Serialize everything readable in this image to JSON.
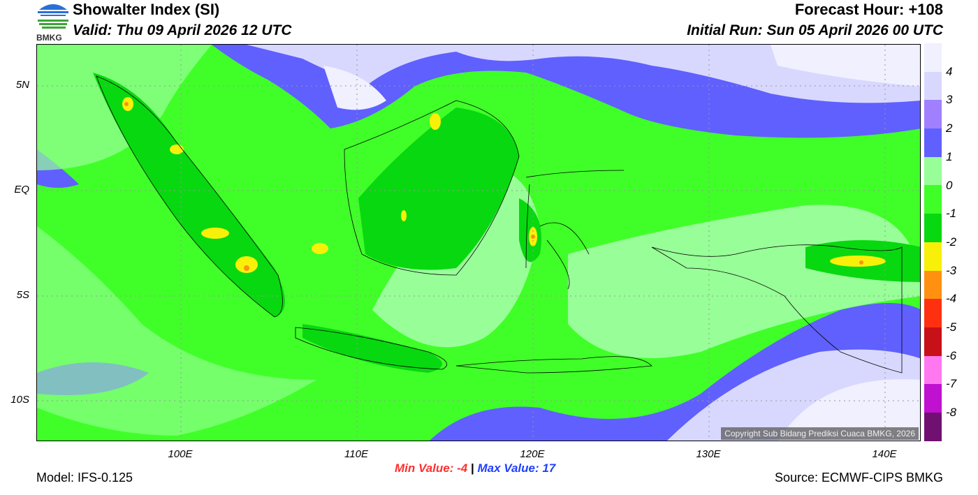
{
  "header": {
    "title": "Showalter Index (SI)",
    "valid": "Valid: Thu 09 April 2026 12 UTC",
    "forecast_hour": "Forecast Hour: +108",
    "initial_run": "Initial Run: Sun 05 April 2026 00 UTC",
    "logo_text": "BMKG"
  },
  "map": {
    "lat_labels": [
      "5N",
      "EQ",
      "5S",
      "10S"
    ],
    "lon_labels": [
      "100E",
      "110E",
      "120E",
      "130E",
      "140E"
    ],
    "copyright": "Copyright Sub Bidang Prediksi Cuaca BMKG, 2026"
  },
  "colorbar": {
    "colors": [
      "#f0f0ff",
      "#d8d8ff",
      "#a080ff",
      "#6060ff",
      "#98ff98",
      "#40ff28",
      "#08d810",
      "#f8f008",
      "#ff9010",
      "#ff3010",
      "#c81018",
      "#ff78f0",
      "#c010d0",
      "#701070"
    ],
    "labels": [
      "4",
      "3",
      "2",
      "1",
      "0",
      "-1",
      "-2",
      "-3",
      "-4",
      "-5",
      "-6",
      "-7",
      "-8"
    ]
  },
  "footer": {
    "min_label": "Min Value:  -4",
    "separator": "|",
    "max_label": "Max Value:  17",
    "model": "Model: IFS-0.125",
    "source": "Source: ECMWF-CIPS BMKG"
  }
}
